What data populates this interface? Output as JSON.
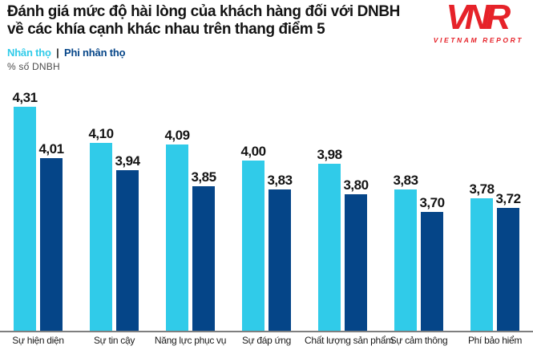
{
  "title": {
    "line1": "Đánh giá mức độ hài lòng của khách hàng đối với DNBH",
    "line2": "về các khía cạnh khác nhau trên thang điểm 5"
  },
  "logo": {
    "acronym": "VNR",
    "caption": "VIETNAM REPORT",
    "color": "#E62229"
  },
  "legend": {
    "series1": "Nhân thọ",
    "separator": "|",
    "series2": "Phi nhân thọ"
  },
  "axis_label": "% số DNBH",
  "colors": {
    "life": "#30CBE9",
    "nonlife": "#054588",
    "text": "#141414",
    "axis_line": "#7f7f7f"
  },
  "chart_data": {
    "type": "bar",
    "title": "Đánh giá mức độ hài lòng của khách hàng đối với DNBH về các khía cạnh khác nhau trên thang điểm 5",
    "categories": [
      "Sự hiện diện",
      "Sự tin cậy",
      "Năng lực phục vụ",
      "Sự đáp ứng",
      "Chất lượng sản phẩm",
      "Sự cảm thông",
      "Phí bảo hiểm"
    ],
    "series": [
      {
        "name": "Nhân thọ",
        "color": "#30CBE9",
        "values": [
          4.31,
          4.1,
          4.09,
          4.0,
          3.98,
          3.83,
          3.78
        ],
        "labels": [
          "4,31",
          "4,10",
          "4,09",
          "4,00",
          "3,98",
          "3,83",
          "3,78"
        ]
      },
      {
        "name": "Phi nhân thọ",
        "color": "#054588",
        "values": [
          4.01,
          3.94,
          3.85,
          3.83,
          3.8,
          3.7,
          3.72
        ],
        "labels": [
          "4,01",
          "3,94",
          "3,85",
          "3,83",
          "3,80",
          "3,70",
          "3,72"
        ]
      }
    ],
    "xlabel": "",
    "ylabel": "% số DNBH",
    "ylim": [
      3.0,
      4.42
    ],
    "grid": false,
    "legend_position": "top-left",
    "value_labels_shown": true
  }
}
